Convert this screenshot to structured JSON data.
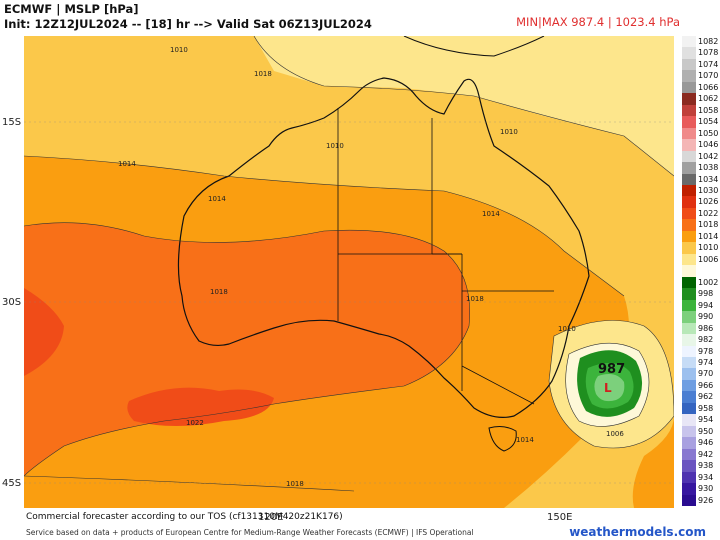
{
  "header": {
    "line1": "ECMWF | MSLP [hPa]",
    "line2": "Init: 12Z12JUL2024 -- [18] hr --> Valid Sat 06Z13JUL2024",
    "minmax": "MIN|MAX 987.4 | 1023.4 hPa"
  },
  "map": {
    "lat_labels": [
      "15S",
      "30S",
      "45S"
    ],
    "lon_labels": [
      "120E",
      "150E"
    ],
    "isobar_labels": [
      "1010",
      "1014",
      "1014",
      "1014",
      "1018",
      "1018",
      "1018",
      "1010",
      "1010",
      "1014",
      "1022",
      "1018",
      "1006",
      "1010"
    ],
    "low_value": "987",
    "low_symbol": "L"
  },
  "colorbar": {
    "levels": [
      {
        "label": "1082",
        "color": "#f2f2f2"
      },
      {
        "label": "1078",
        "color": "#e0e0e0"
      },
      {
        "label": "1074",
        "color": "#c8c8c8"
      },
      {
        "label": "1070",
        "color": "#b0b0b0"
      },
      {
        "label": "1066",
        "color": "#989898"
      },
      {
        "label": "1062",
        "color": "#8b2a20"
      },
      {
        "label": "1058",
        "color": "#c0403a"
      },
      {
        "label": "1054",
        "color": "#e85a5a"
      },
      {
        "label": "1050",
        "color": "#f08a8a"
      },
      {
        "label": "1046",
        "color": "#f4b6b6"
      },
      {
        "label": "1042",
        "color": "#d8d8d8"
      },
      {
        "label": "1038",
        "color": "#a0a0a0"
      },
      {
        "label": "1034",
        "color": "#6a6a6a"
      },
      {
        "label": "1030",
        "color": "#c02000"
      },
      {
        "label": "1026",
        "color": "#e03010"
      },
      {
        "label": "1022",
        "color": "#f04c18"
      },
      {
        "label": "1018",
        "color": "#f87018"
      },
      {
        "label": "1014",
        "color": "#fa9e10"
      },
      {
        "label": "1010",
        "color": "#fbc84a"
      },
      {
        "label": "1006",
        "color": "#fde68c"
      },
      {
        "label": "",
        "color": "#fef8d8"
      },
      {
        "label": "1002",
        "color": "#006400"
      },
      {
        "label": "998",
        "color": "#1f8f1f"
      },
      {
        "label": "994",
        "color": "#3cb43c"
      },
      {
        "label": "990",
        "color": "#7cd07c"
      },
      {
        "label": "986",
        "color": "#b8e8b8"
      },
      {
        "label": "982",
        "color": "#e8f6e8"
      },
      {
        "label": "978",
        "color": "#eef4ff"
      },
      {
        "label": "974",
        "color": "#c6dcf6"
      },
      {
        "label": "970",
        "color": "#9cc0ee"
      },
      {
        "label": "966",
        "color": "#6e9ee2"
      },
      {
        "label": "962",
        "color": "#4a7ed2"
      },
      {
        "label": "958",
        "color": "#3464c0"
      },
      {
        "label": "954",
        "color": "#e8e6f6"
      },
      {
        "label": "950",
        "color": "#c8c4ec"
      },
      {
        "label": "946",
        "color": "#a8a0e0"
      },
      {
        "label": "942",
        "color": "#8878d0"
      },
      {
        "label": "938",
        "color": "#6a54c0"
      },
      {
        "label": "934",
        "color": "#4e32b0"
      },
      {
        "label": "930",
        "color": "#3616a0"
      },
      {
        "label": "926",
        "color": "#2a0c90"
      }
    ]
  },
  "footer": {
    "line1": "Commercial forecaster according to our TOS (cf131310M420z21K176)",
    "line2": "Service based on data + products of European Centre for Medium-Range Weather Forecasts (ECMWF) | IFS Operational",
    "brand": "weathermodels.com"
  }
}
